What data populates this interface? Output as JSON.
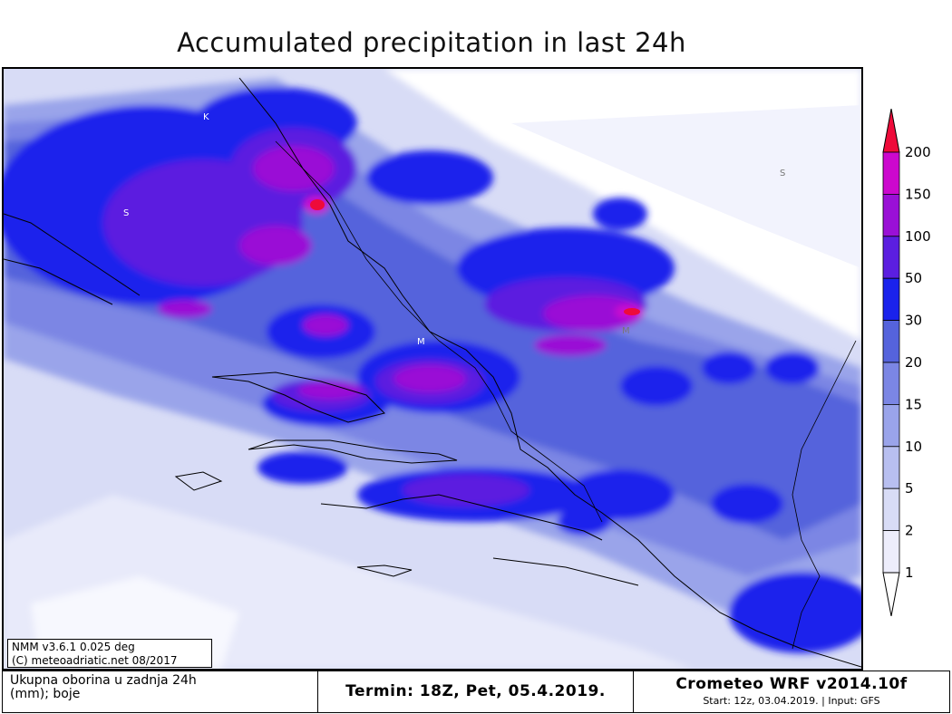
{
  "title": "Accumulated precipitation in last 24h",
  "map_labels": [
    "K",
    "S",
    "S",
    "M",
    "M"
  ],
  "info_box": {
    "line1": "NMM v3.6.1 0.025 deg",
    "line2": "(C) meteoadriatic.net 08/2017"
  },
  "colorbar": {
    "levels": [
      "1",
      "2",
      "5",
      "10",
      "15",
      "20",
      "30",
      "50",
      "100",
      "150",
      "200"
    ],
    "colors": [
      "#ffffff",
      "#ededfb",
      "#d8dcf6",
      "#b8bff0",
      "#9aa4ea",
      "#7b86e4",
      "#5563dc",
      "#1a22ec",
      "#5b1ee0",
      "#9a10d6",
      "#cc08ce",
      "#ee0b3a"
    ]
  },
  "footer": {
    "left_line1": "Ukupna oborina u zadnja 24h",
    "left_line2": "(mm); boje",
    "middle": "Termin: 18Z, Pet, 05.4.2019.",
    "right_line1": "Crometeo WRF v2014.10f",
    "right_line2": "Start: 12z, 03.04.2019. | Input: GFS"
  }
}
